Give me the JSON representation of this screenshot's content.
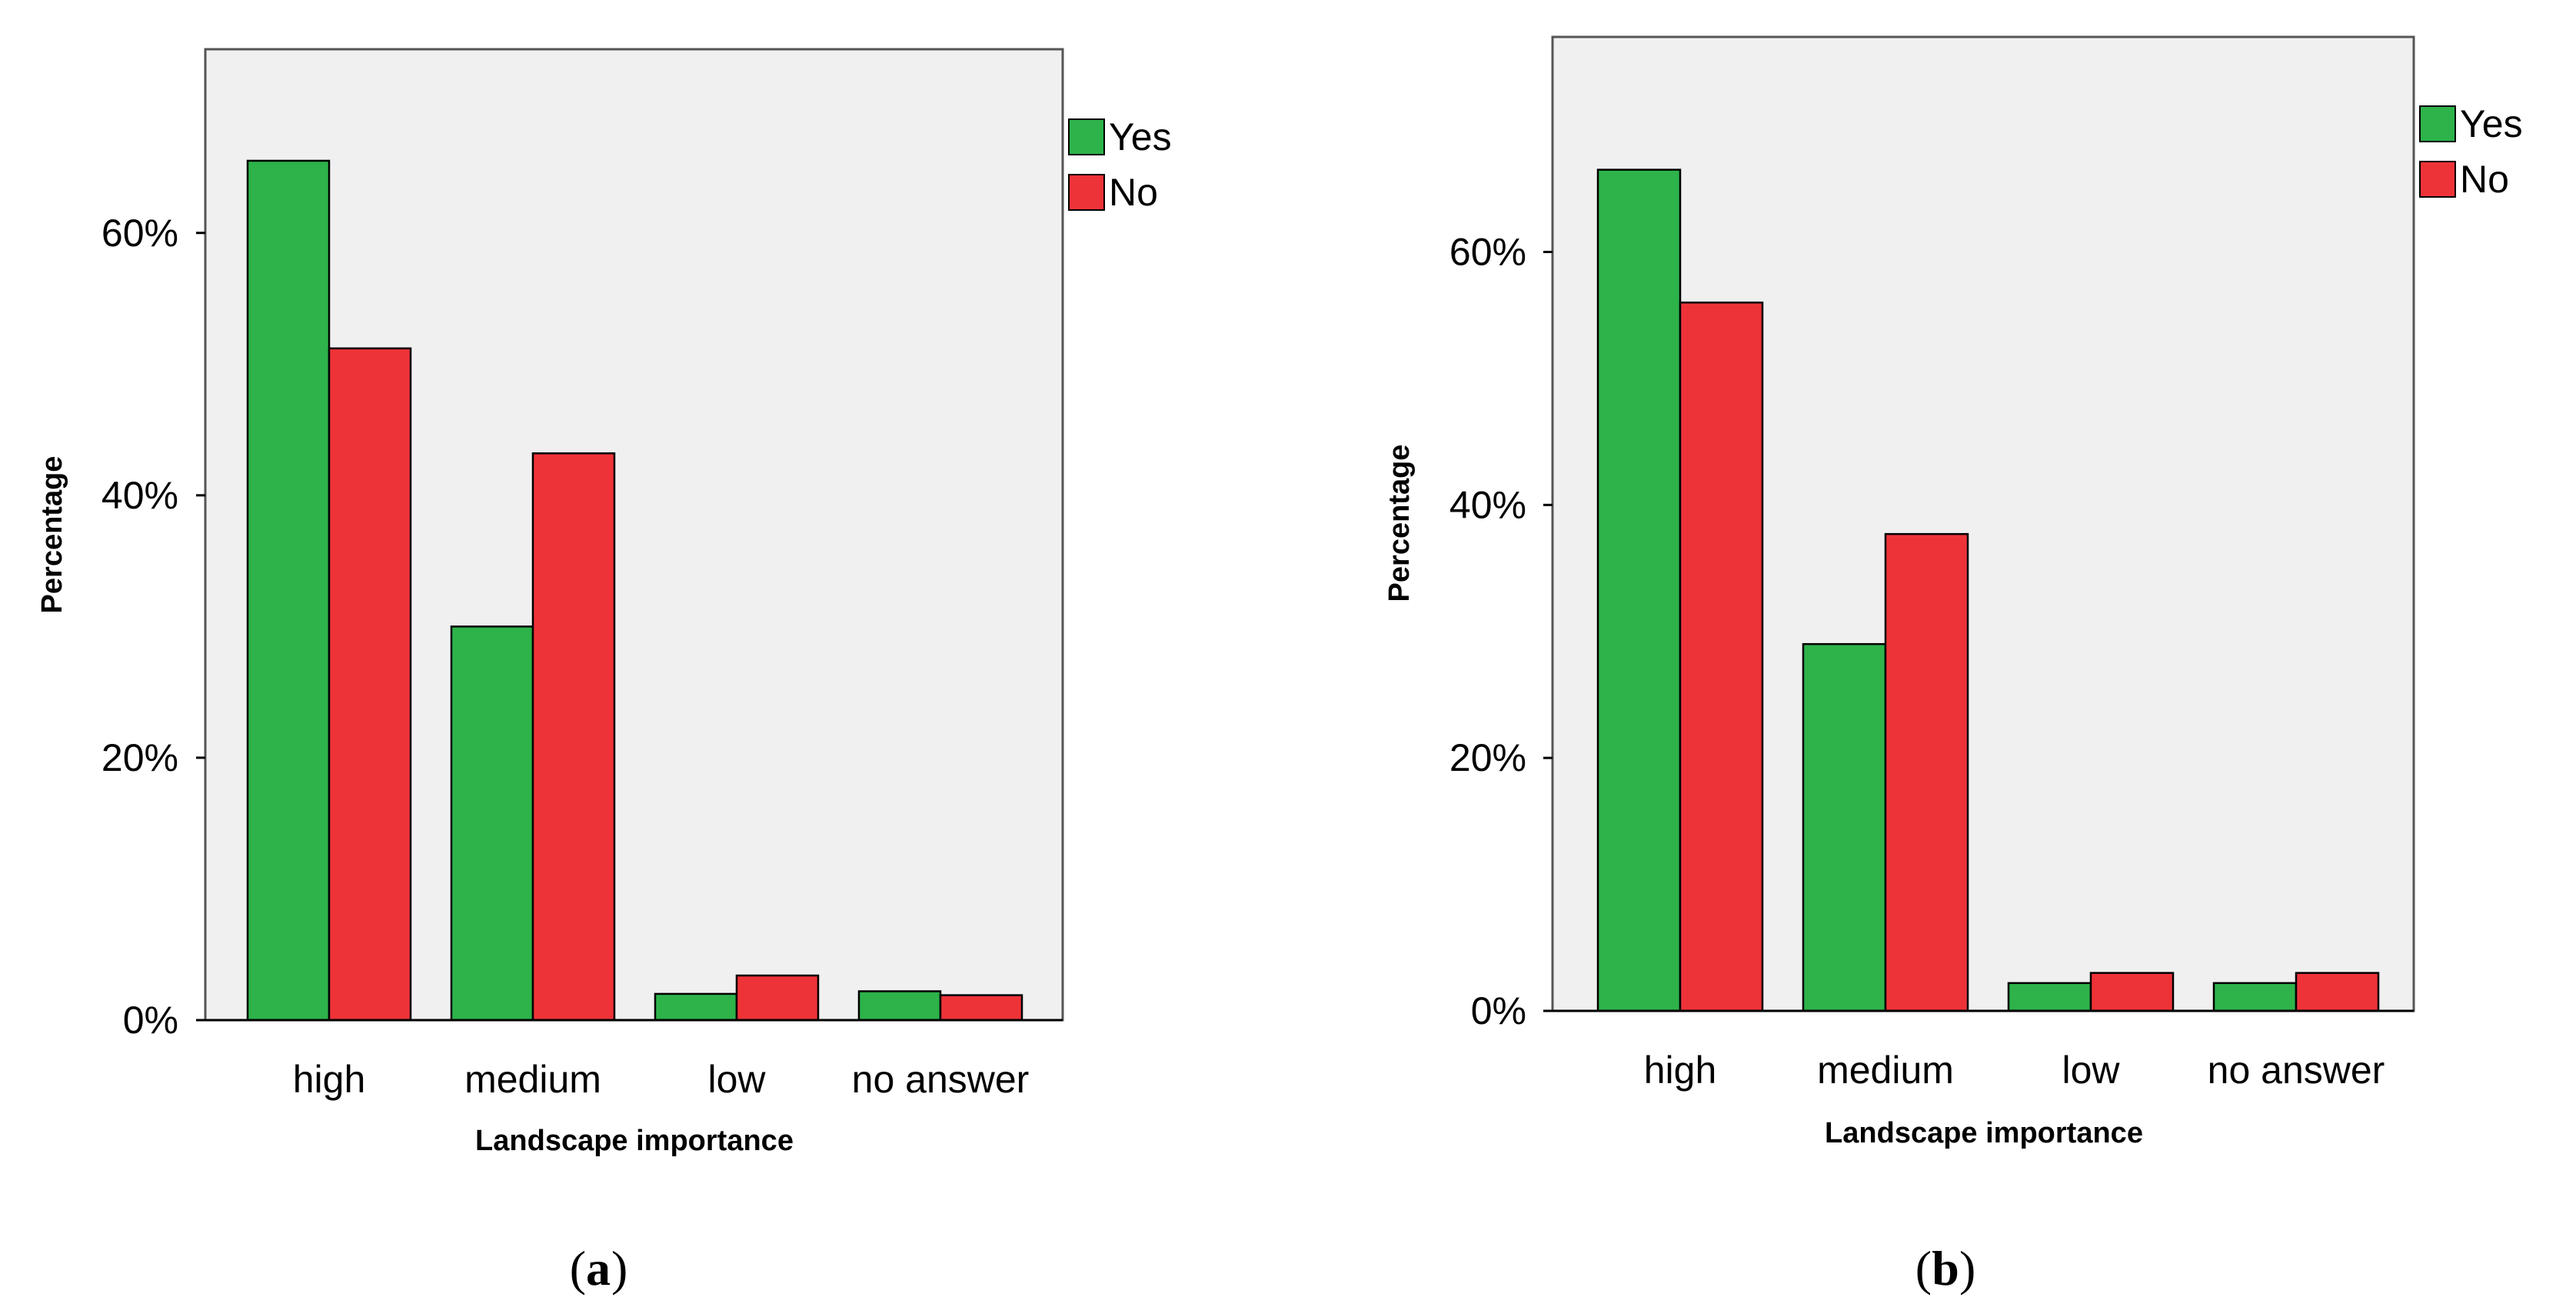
{
  "chart_data": [
    {
      "type": "bar",
      "panel_label": "a",
      "categories": [
        "high",
        "medium",
        "low",
        "no answer"
      ],
      "series": [
        {
          "name": "Yes",
          "color": "#2db34a",
          "values": [
            65.5,
            30.0,
            2.0,
            2.2
          ]
        },
        {
          "name": "No",
          "color": "#ee3338",
          "values": [
            51.2,
            43.2,
            3.4,
            1.9
          ]
        }
      ],
      "xlabel": "Landscape importance",
      "ylabel": "Percentage",
      "yticks": [
        "0%",
        "20%",
        "40%",
        "60%"
      ],
      "ylim": [
        0,
        74
      ],
      "legend": "top-right",
      "grid": false
    },
    {
      "type": "bar",
      "panel_label": "b",
      "categories": [
        "high",
        "medium",
        "low",
        "no answer"
      ],
      "series": [
        {
          "name": "Yes",
          "color": "#2db34a",
          "values": [
            66.5,
            29.0,
            2.2,
            2.2
          ]
        },
        {
          "name": "No",
          "color": "#ee3338",
          "values": [
            56.0,
            37.7,
            3.0,
            3.0
          ]
        }
      ],
      "xlabel": "Landscape importance",
      "ylabel": "Percentage",
      "yticks": [
        "0%",
        "20%",
        "40%",
        "60%"
      ],
      "ylim": [
        0,
        77
      ],
      "legend": "top-right",
      "grid": false
    }
  ]
}
